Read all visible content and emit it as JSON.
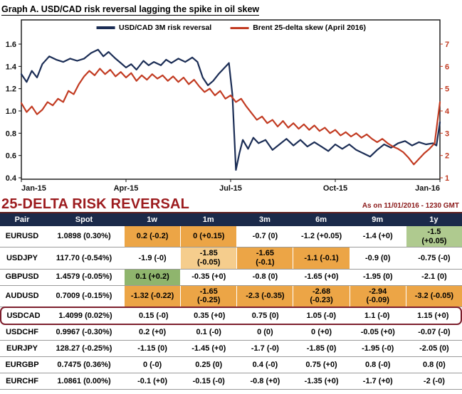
{
  "graph": {
    "title": "Graph A. USD/CAD risk reversal lagging the spike in oil skew"
  },
  "chart_data": {
    "type": "line",
    "title": "Graph A. USD/CAD risk reversal lagging the spike in oil skew",
    "x_ticks": [
      "Jan-15",
      "Apr-15",
      "Jul-15",
      "Oct-15",
      "Jan-16"
    ],
    "left_axis": {
      "min": 0.4,
      "max": 1.6,
      "ticks": [
        0.4,
        0.6,
        0.8,
        1.0,
        1.2,
        1.4,
        1.6
      ],
      "color": "#111111"
    },
    "right_axis": {
      "min": 1,
      "max": 7,
      "ticks": [
        1,
        2,
        3,
        4,
        5,
        6,
        7
      ],
      "color": "#c23b22"
    },
    "legend_position": "top-center-inside",
    "grid": false,
    "series": [
      {
        "name": "USD/CAD 3M risk reversal",
        "axis": "left",
        "color": "#1b2d55",
        "points": [
          [
            0,
            1.33
          ],
          [
            0.15,
            1.26
          ],
          [
            0.3,
            1.36
          ],
          [
            0.45,
            1.3
          ],
          [
            0.6,
            1.42
          ],
          [
            0.8,
            1.49
          ],
          [
            1.0,
            1.46
          ],
          [
            1.2,
            1.44
          ],
          [
            1.4,
            1.47
          ],
          [
            1.6,
            1.45
          ],
          [
            1.8,
            1.47
          ],
          [
            2.0,
            1.52
          ],
          [
            2.2,
            1.55
          ],
          [
            2.35,
            1.49
          ],
          [
            2.5,
            1.53
          ],
          [
            2.7,
            1.47
          ],
          [
            2.85,
            1.43
          ],
          [
            3.0,
            1.39
          ],
          [
            3.15,
            1.42
          ],
          [
            3.3,
            1.37
          ],
          [
            3.5,
            1.45
          ],
          [
            3.65,
            1.41
          ],
          [
            3.8,
            1.44
          ],
          [
            4.0,
            1.41
          ],
          [
            4.15,
            1.46
          ],
          [
            4.3,
            1.43
          ],
          [
            4.5,
            1.47
          ],
          [
            4.7,
            1.44
          ],
          [
            4.9,
            1.48
          ],
          [
            5.05,
            1.44
          ],
          [
            5.2,
            1.3
          ],
          [
            5.35,
            1.23
          ],
          [
            5.5,
            1.27
          ],
          [
            5.65,
            1.33
          ],
          [
            5.8,
            1.38
          ],
          [
            5.95,
            1.43
          ],
          [
            6.05,
            1.15
          ],
          [
            6.15,
            0.47
          ],
          [
            6.25,
            0.62
          ],
          [
            6.35,
            0.74
          ],
          [
            6.5,
            0.66
          ],
          [
            6.65,
            0.76
          ],
          [
            6.8,
            0.71
          ],
          [
            7.0,
            0.74
          ],
          [
            7.2,
            0.65
          ],
          [
            7.4,
            0.7
          ],
          [
            7.6,
            0.75
          ],
          [
            7.8,
            0.69
          ],
          [
            8.0,
            0.74
          ],
          [
            8.2,
            0.68
          ],
          [
            8.4,
            0.72
          ],
          [
            8.6,
            0.68
          ],
          [
            8.8,
            0.64
          ],
          [
            9.0,
            0.7
          ],
          [
            9.2,
            0.66
          ],
          [
            9.4,
            0.7
          ],
          [
            9.6,
            0.65
          ],
          [
            9.8,
            0.62
          ],
          [
            10.0,
            0.59
          ],
          [
            10.2,
            0.65
          ],
          [
            10.4,
            0.7
          ],
          [
            10.6,
            0.67
          ],
          [
            10.8,
            0.71
          ],
          [
            11.0,
            0.73
          ],
          [
            11.2,
            0.69
          ],
          [
            11.4,
            0.72
          ],
          [
            11.6,
            0.7
          ],
          [
            11.8,
            0.71
          ],
          [
            11.9,
            0.69
          ],
          [
            12,
            0.9
          ]
        ]
      },
      {
        "name": "Brent 25-delta skew (April 2016)",
        "axis": "right",
        "color": "#c23b22",
        "points": [
          [
            0,
            4.35
          ],
          [
            0.15,
            3.95
          ],
          [
            0.3,
            4.2
          ],
          [
            0.45,
            3.85
          ],
          [
            0.6,
            4.05
          ],
          [
            0.75,
            4.4
          ],
          [
            0.9,
            4.25
          ],
          [
            1.05,
            4.55
          ],
          [
            1.2,
            4.4
          ],
          [
            1.35,
            4.9
          ],
          [
            1.5,
            4.75
          ],
          [
            1.65,
            5.2
          ],
          [
            1.8,
            5.55
          ],
          [
            1.95,
            5.8
          ],
          [
            2.1,
            5.6
          ],
          [
            2.25,
            5.9
          ],
          [
            2.4,
            5.65
          ],
          [
            2.55,
            5.85
          ],
          [
            2.7,
            5.55
          ],
          [
            2.85,
            5.75
          ],
          [
            3.0,
            5.5
          ],
          [
            3.15,
            5.7
          ],
          [
            3.3,
            5.35
          ],
          [
            3.45,
            5.6
          ],
          [
            3.6,
            5.4
          ],
          [
            3.75,
            5.65
          ],
          [
            3.9,
            5.45
          ],
          [
            4.05,
            5.6
          ],
          [
            4.2,
            5.35
          ],
          [
            4.35,
            5.55
          ],
          [
            4.5,
            5.3
          ],
          [
            4.65,
            5.5
          ],
          [
            4.8,
            5.2
          ],
          [
            4.95,
            5.4
          ],
          [
            5.1,
            5.1
          ],
          [
            5.25,
            4.85
          ],
          [
            5.4,
            5.0
          ],
          [
            5.55,
            4.7
          ],
          [
            5.7,
            4.9
          ],
          [
            5.85,
            4.55
          ],
          [
            6.0,
            4.7
          ],
          [
            6.15,
            4.4
          ],
          [
            6.3,
            4.55
          ],
          [
            6.45,
            4.2
          ],
          [
            6.6,
            3.9
          ],
          [
            6.75,
            3.6
          ],
          [
            6.9,
            3.75
          ],
          [
            7.05,
            3.45
          ],
          [
            7.2,
            3.6
          ],
          [
            7.35,
            3.3
          ],
          [
            7.5,
            3.55
          ],
          [
            7.65,
            3.25
          ],
          [
            7.8,
            3.45
          ],
          [
            7.95,
            3.2
          ],
          [
            8.1,
            3.4
          ],
          [
            8.25,
            3.15
          ],
          [
            8.4,
            3.35
          ],
          [
            8.55,
            3.1
          ],
          [
            8.7,
            3.25
          ],
          [
            8.85,
            3.0
          ],
          [
            9.0,
            3.15
          ],
          [
            9.15,
            2.9
          ],
          [
            9.3,
            3.05
          ],
          [
            9.45,
            2.85
          ],
          [
            9.6,
            3.0
          ],
          [
            9.75,
            2.8
          ],
          [
            9.9,
            2.95
          ],
          [
            10.05,
            2.75
          ],
          [
            10.2,
            2.6
          ],
          [
            10.35,
            2.75
          ],
          [
            10.5,
            2.55
          ],
          [
            10.65,
            2.4
          ],
          [
            10.8,
            2.3
          ],
          [
            10.95,
            2.15
          ],
          [
            11.1,
            1.9
          ],
          [
            11.25,
            1.6
          ],
          [
            11.4,
            1.85
          ],
          [
            11.55,
            2.1
          ],
          [
            11.7,
            2.3
          ],
          [
            11.85,
            2.55
          ],
          [
            12,
            4.4
          ]
        ]
      }
    ]
  },
  "section": {
    "title": "25-DELTA RISK REVERSAL",
    "timestamp": "As on 11/01/2016 - 1230 GMT"
  },
  "table": {
    "headers": [
      "Pair",
      "Spot",
      "1w",
      "1m",
      "3m",
      "6m",
      "9m",
      "1y"
    ],
    "rows": [
      {
        "pair": "EURUSD",
        "spot": "1.0898 (0.30%)",
        "highlight": false,
        "cells": [
          {
            "text": "0.2 (-0.2)",
            "bg": "orange"
          },
          {
            "text": "0 (+0.15)",
            "bg": "orange"
          },
          {
            "text": "-0.7 (0)",
            "bg": "none"
          },
          {
            "text": "-1.2 (+0.05)",
            "bg": "none"
          },
          {
            "text": "-1.4 (+0)",
            "bg": "none"
          },
          {
            "text": "-1.5\n(+0.05)",
            "bg": "green_light"
          }
        ]
      },
      {
        "pair": "USDJPY",
        "spot": "117.70 (-0.54%)",
        "highlight": false,
        "cells": [
          {
            "text": "-1.9 (-0)",
            "bg": "none"
          },
          {
            "text": "-1.85\n(-0.05)",
            "bg": "orange_light"
          },
          {
            "text": "-1.65\n(-0.1)",
            "bg": "orange"
          },
          {
            "text": "-1.1 (-0.1)",
            "bg": "orange"
          },
          {
            "text": "-0.9 (0)",
            "bg": "none"
          },
          {
            "text": "-0.75 (-0)",
            "bg": "none"
          }
        ]
      },
      {
        "pair": "GBPUSD",
        "spot": "1.4579 (-0.05%)",
        "highlight": false,
        "cells": [
          {
            "text": "0.1 (+0.2)",
            "bg": "green"
          },
          {
            "text": "-0.35 (+0)",
            "bg": "none"
          },
          {
            "text": "-0.8 (0)",
            "bg": "none"
          },
          {
            "text": "-1.65 (+0)",
            "bg": "none"
          },
          {
            "text": "-1.95 (0)",
            "bg": "none"
          },
          {
            "text": "-2.1 (0)",
            "bg": "none"
          }
        ]
      },
      {
        "pair": "AUDUSD",
        "spot": "0.7009 (-0.15%)",
        "highlight": false,
        "cells": [
          {
            "text": "-1.32 (-0.22)",
            "bg": "orange"
          },
          {
            "text": "-1.65\n(-0.25)",
            "bg": "orange"
          },
          {
            "text": "-2.3 (-0.35)",
            "bg": "orange"
          },
          {
            "text": "-2.68\n(-0.23)",
            "bg": "orange"
          },
          {
            "text": "-2.94\n(-0.09)",
            "bg": "orange"
          },
          {
            "text": "-3.2 (-0.05)",
            "bg": "orange"
          }
        ]
      },
      {
        "pair": "USDCAD",
        "spot": "1.4099 (0.02%)",
        "highlight": true,
        "cells": [
          {
            "text": "0.15 (-0)",
            "bg": "none"
          },
          {
            "text": "0.35 (+0)",
            "bg": "none"
          },
          {
            "text": "0.75 (0)",
            "bg": "none"
          },
          {
            "text": "1.05 (-0)",
            "bg": "none"
          },
          {
            "text": "1.1 (-0)",
            "bg": "none"
          },
          {
            "text": "1.15 (+0)",
            "bg": "none"
          }
        ]
      },
      {
        "pair": "USDCHF",
        "spot": "0.9967 (-0.30%)",
        "highlight": false,
        "cells": [
          {
            "text": "0.2 (+0)",
            "bg": "none"
          },
          {
            "text": "0.1 (-0)",
            "bg": "none"
          },
          {
            "text": "0 (0)",
            "bg": "none"
          },
          {
            "text": "0 (+0)",
            "bg": "none"
          },
          {
            "text": "-0.05 (+0)",
            "bg": "none"
          },
          {
            "text": "-0.07 (-0)",
            "bg": "none"
          }
        ]
      },
      {
        "pair": "EURJPY",
        "spot": "128.27 (-0.25%)",
        "highlight": false,
        "cells": [
          {
            "text": "-1.15 (0)",
            "bg": "none"
          },
          {
            "text": "-1.45 (+0)",
            "bg": "none"
          },
          {
            "text": "-1.7 (-0)",
            "bg": "none"
          },
          {
            "text": "-1.85 (0)",
            "bg": "none"
          },
          {
            "text": "-1.95 (-0)",
            "bg": "none"
          },
          {
            "text": "-2.05 (0)",
            "bg": "none"
          }
        ]
      },
      {
        "pair": "EURGBP",
        "spot": "0.7475 (0.36%)",
        "highlight": false,
        "cells": [
          {
            "text": "0 (-0)",
            "bg": "none"
          },
          {
            "text": "0.25 (0)",
            "bg": "none"
          },
          {
            "text": "0.4 (-0)",
            "bg": "none"
          },
          {
            "text": "0.75 (+0)",
            "bg": "none"
          },
          {
            "text": "0.8 (-0)",
            "bg": "none"
          },
          {
            "text": "0.8 (0)",
            "bg": "none"
          }
        ]
      },
      {
        "pair": "EURCHF",
        "spot": "1.0861 (0.00%)",
        "highlight": false,
        "cells": [
          {
            "text": "-0.1 (+0)",
            "bg": "none"
          },
          {
            "text": "-0.15 (-0)",
            "bg": "none"
          },
          {
            "text": "-0.8 (+0)",
            "bg": "none"
          },
          {
            "text": "-1.35 (+0)",
            "bg": "none"
          },
          {
            "text": "-1.7 (+0)",
            "bg": "none"
          },
          {
            "text": "-2 (-0)",
            "bg": "none"
          }
        ]
      }
    ]
  },
  "colors": {
    "header_bg": "#1b2a4a",
    "navy_line": "#1b2d55",
    "red_line": "#c23b22",
    "orange": "#eca546",
    "orange_light": "#f5cd8d",
    "green": "#8fb56d",
    "green_light": "#afca8f",
    "highlight_border": "#7d1f2d",
    "title_red": "#9c1b1e"
  }
}
